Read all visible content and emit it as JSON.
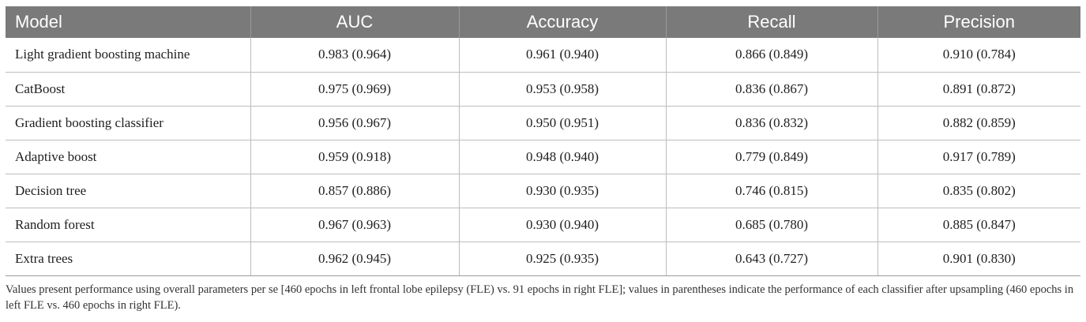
{
  "table": {
    "headers": [
      "Model",
      "AUC",
      "Accuracy",
      "Recall",
      "Precision"
    ],
    "rows": [
      [
        "Light gradient boosting machine",
        "0.983 (0.964)",
        "0.961 (0.940)",
        "0.866 (0.849)",
        "0.910 (0.784)"
      ],
      [
        "CatBoost",
        "0.975 (0.969)",
        "0.953 (0.958)",
        "0.836 (0.867)",
        "0.891 (0.872)"
      ],
      [
        "Gradient boosting classifier",
        "0.956 (0.967)",
        "0.950 (0.951)",
        "0.836 (0.832)",
        "0.882 (0.859)"
      ],
      [
        "Adaptive boost",
        "0.959 (0.918)",
        "0.948 (0.940)",
        "0.779 (0.849)",
        "0.917 (0.789)"
      ],
      [
        "Decision tree",
        "0.857 (0.886)",
        "0.930 (0.935)",
        "0.746 (0.815)",
        "0.835 (0.802)"
      ],
      [
        "Random forest",
        "0.967 (0.963)",
        "0.930 (0.940)",
        "0.685 (0.780)",
        "0.885 (0.847)"
      ],
      [
        "Extra trees",
        "0.962 (0.945)",
        "0.925 (0.935)",
        "0.643 (0.727)",
        "0.901 (0.830)"
      ]
    ]
  },
  "footnote": "Values present performance using overall parameters per se [460 epochs in left frontal lobe epilepsy (FLE) vs. 91 epochs in right FLE]; values in parentheses indicate the performance of each classifier after upsampling (460 epochs in left FLE vs. 460 epochs in right FLE).",
  "colors": {
    "header_bg": "#7a7a7a",
    "header_text": "#ffffff",
    "grid": "#bdbdbd"
  }
}
